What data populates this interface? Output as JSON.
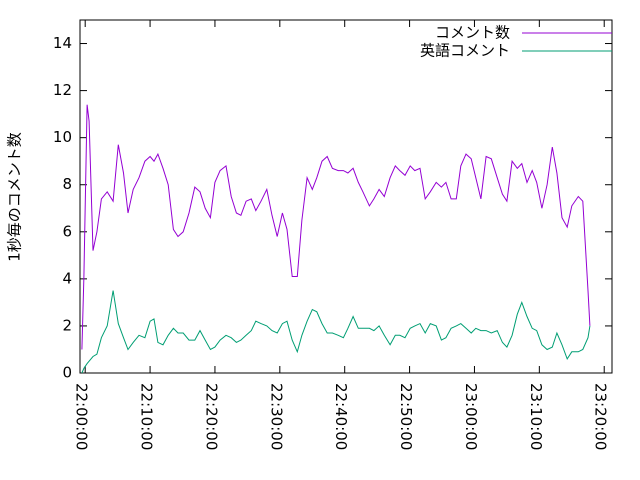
{
  "chart_data": {
    "type": "line",
    "y_label": "1秒毎のコメント数",
    "x": [
      -0.5,
      -0.2,
      0.3,
      0.6,
      1.2,
      1.8,
      2.5,
      3.4,
      4.3,
      5.1,
      5.9,
      6.6,
      7.4,
      8.3,
      9.2,
      10.0,
      10.6,
      11.2,
      12.0,
      12.8,
      13.6,
      14.3,
      15.1,
      16.0,
      16.9,
      17.7,
      18.5,
      19.3,
      20.0,
      20.8,
      21.7,
      22.5,
      23.3,
      24.0,
      24.8,
      25.6,
      26.3,
      27.1,
      28.0,
      28.8,
      29.6,
      30.4,
      31.1,
      31.9,
      32.7,
      33.4,
      34.2,
      35.0,
      35.7,
      36.5,
      37.3,
      38.1,
      39.0,
      39.8,
      40.5,
      41.3,
      42.1,
      42.8,
      43.8,
      44.5,
      45.3,
      46.1,
      47.0,
      47.8,
      48.5,
      49.3,
      50.1,
      50.8,
      51.6,
      52.4,
      53.2,
      54.1,
      54.9,
      55.6,
      56.4,
      57.2,
      57.9,
      58.7,
      59.5,
      60.2,
      61.0,
      61.8,
      62.6,
      63.5,
      64.3,
      65.0,
      65.8,
      66.6,
      67.3,
      68.1,
      68.9,
      69.6,
      70.4,
      71.2,
      72.0,
      72.7,
      73.5,
      74.3,
      75.0,
      76.0,
      76.7,
      77.5,
      77.8
    ],
    "series": [
      {
        "name": "コメント数",
        "color": "#9400d3",
        "values": [
          1,
          4.1,
          11.4,
          10.7,
          5.2,
          6,
          7.4,
          7.7,
          7.3,
          9.7,
          8.5,
          6.8,
          7.8,
          8.3,
          9,
          9.2,
          9,
          9.3,
          8.7,
          8,
          6.1,
          5.8,
          6,
          6.8,
          7.9,
          7.7,
          7,
          6.6,
          8.1,
          8.6,
          8.8,
          7.5,
          6.8,
          6.7,
          7.3,
          7.4,
          6.9,
          7.3,
          7.8,
          6.7,
          5.8,
          6.8,
          6.1,
          4.1,
          4.1,
          6.5,
          8.3,
          7.8,
          8.3,
          9,
          9.2,
          8.7,
          8.6,
          8.6,
          8.5,
          8.7,
          8.1,
          7.7,
          7.1,
          7.4,
          7.8,
          7.5,
          8.3,
          8.8,
          8.6,
          8.4,
          8.8,
          8.6,
          8.7,
          7.4,
          7.7,
          8.1,
          7.9,
          8.1,
          7.4,
          7.4,
          8.8,
          9.3,
          9.1,
          8.3,
          7.4,
          9.2,
          9.1,
          8.3,
          7.6,
          7.3,
          9,
          8.7,
          8.9,
          8.1,
          8.6,
          8.1,
          7,
          8,
          9.6,
          8.5,
          6.6,
          6.2,
          7.1,
          7.5,
          7.3,
          3.5,
          2
        ]
      },
      {
        "name": "英語コメント",
        "color": "#009e73",
        "values": [
          0,
          0.2,
          0.4,
          0.5,
          0.7,
          0.8,
          1.5,
          2,
          3.5,
          2.1,
          1.5,
          1,
          1.3,
          1.6,
          1.5,
          2.2,
          2.3,
          1.3,
          1.2,
          1.6,
          1.9,
          1.7,
          1.7,
          1.4,
          1.4,
          1.8,
          1.4,
          1,
          1.1,
          1.4,
          1.6,
          1.5,
          1.3,
          1.4,
          1.6,
          1.8,
          2.2,
          2.1,
          2,
          1.8,
          1.7,
          2.1,
          2.2,
          1.4,
          0.9,
          1.6,
          2.2,
          2.7,
          2.6,
          2.1,
          1.7,
          1.7,
          1.6,
          1.5,
          1.9,
          2.4,
          1.9,
          1.9,
          1.9,
          1.8,
          2,
          1.6,
          1.2,
          1.6,
          1.6,
          1.5,
          1.9,
          2,
          2.1,
          1.7,
          2.1,
          2,
          1.4,
          1.5,
          1.9,
          2,
          2.1,
          1.9,
          1.7,
          1.9,
          1.8,
          1.8,
          1.7,
          1.8,
          1.3,
          1.1,
          1.6,
          2.5,
          3,
          2.4,
          1.9,
          1.8,
          1.2,
          1,
          1.1,
          1.7,
          1.2,
          0.6,
          0.9,
          0.9,
          1,
          1.5,
          2
        ]
      }
    ],
    "xlim": [
      -0.8,
      81.2
    ],
    "xticks": [
      {
        "value": 0,
        "label": "22:00:00"
      },
      {
        "value": 10,
        "label": "22:10:00"
      },
      {
        "value": 20,
        "label": "22:20:00"
      },
      {
        "value": 30,
        "label": "22:30:00"
      },
      {
        "value": 40,
        "label": "22:40:00"
      },
      {
        "value": 50,
        "label": "22:50:00"
      },
      {
        "value": 60,
        "label": "23:00:00"
      },
      {
        "value": 70,
        "label": "23:10:00"
      },
      {
        "value": 80,
        "label": "23:20:00"
      }
    ],
    "ylim": [
      0,
      15
    ],
    "yticks": [
      0,
      2,
      4,
      6,
      8,
      10,
      12,
      14
    ],
    "legend": "top-right"
  }
}
